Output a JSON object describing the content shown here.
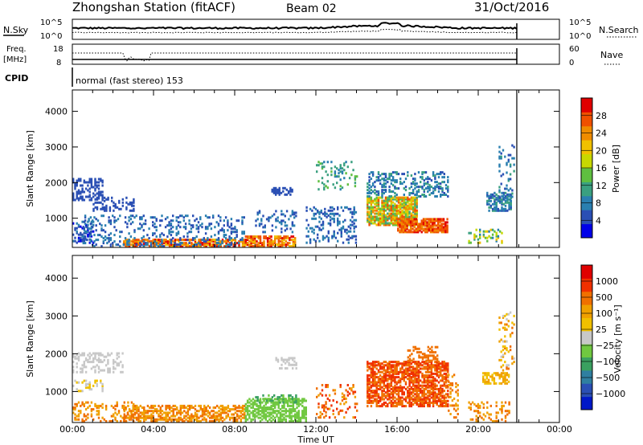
{
  "header": {
    "station": "Zhongshan Station (fitACF)",
    "beam": "Beam 02",
    "date": "31/Oct/2016"
  },
  "top_panels": {
    "nsky_label": "N.Sky",
    "nsky_ticks": [
      "10^5",
      "10^0"
    ],
    "nsearch_label": "N.Search",
    "nsearch_ticks": [
      "10^5",
      "10^0"
    ],
    "freq_label_1": "Freq.",
    "freq_label_2": "[MHz]",
    "freq_ticks": [
      "18",
      "8"
    ],
    "nave_label": "Nave",
    "nave_ticks": [
      "60",
      "0"
    ],
    "cpid_label": "CPID",
    "cpid_value": "normal (fast stereo) 153"
  },
  "chart_data": [
    {
      "type": "heatmap",
      "name_hint": "power",
      "ylabel": "Slant Range [km]",
      "xlabel": "Time UT",
      "x_range_hours": [
        0,
        24
      ],
      "ylim_km": [
        180,
        4600
      ],
      "y_ticks": [
        "1000",
        "2000",
        "3000",
        "4000"
      ],
      "x_ticks": [
        "00:00",
        "04:00",
        "08:00",
        "12:00",
        "16:00",
        "20:00",
        "00:00"
      ],
      "colorbar": {
        "label": "Power [dB]",
        "ticks": [
          "4",
          "8",
          "12",
          "16",
          "20",
          "24",
          "28"
        ],
        "colors": [
          "#0000e8",
          "#2a4fb4",
          "#2a7fb0",
          "#3aa080",
          "#5fbf40",
          "#c8d800",
          "#f0c000",
          "#f08c00",
          "#f05000",
          "#e00000"
        ]
      },
      "data_end_hours": 21.9
    },
    {
      "type": "heatmap",
      "name_hint": "velocity",
      "ylabel": "Slant Range [km]",
      "xlabel": "Time UT",
      "x_range_hours": [
        0,
        24
      ],
      "ylim_km": [
        180,
        4600
      ],
      "y_ticks": [
        "1000",
        "2000",
        "3000",
        "4000"
      ],
      "x_ticks": [
        "00:00",
        "04:00",
        "08:00",
        "12:00",
        "16:00",
        "20:00",
        "00:00"
      ],
      "colorbar": {
        "label": "Velocity [m s⁻¹]",
        "ticks": [
          "1000",
          "500",
          "100",
          "25",
          "−25",
          "−100",
          "−500",
          "−1000"
        ],
        "colors": [
          "#0018c8",
          "#2a4fb4",
          "#2f7fa0",
          "#3aa060",
          "#70c840",
          "#c8c8c8",
          "#f0c000",
          "#f0a000",
          "#f07000",
          "#f03000",
          "#e00000"
        ]
      },
      "data_end_hours": 21.9
    }
  ],
  "footer": {
    "xlabel": "Time UT"
  }
}
